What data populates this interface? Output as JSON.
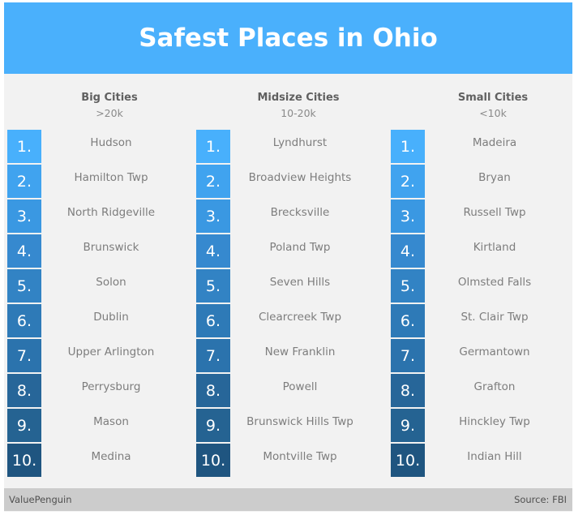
{
  "title": "Safest Places in Ohio",
  "colors": {
    "header_bg": "#4ab0fc",
    "rank_colors": [
      "#48b0fc",
      "#40a3ef",
      "#3a98e2",
      "#3689cf",
      "#3283c4",
      "#2e7ab7",
      "#2b73ad",
      "#276699",
      "#256392",
      "#1f5580"
    ]
  },
  "columns": [
    {
      "title": "Big Cities",
      "subtitle": ">20k",
      "items": [
        {
          "rank": "1.",
          "city": "Hudson"
        },
        {
          "rank": "2.",
          "city": "Hamilton Twp"
        },
        {
          "rank": "3.",
          "city": "North Ridgeville"
        },
        {
          "rank": "4.",
          "city": "Brunswick"
        },
        {
          "rank": "5.",
          "city": "Solon"
        },
        {
          "rank": "6.",
          "city": "Dublin"
        },
        {
          "rank": "7.",
          "city": "Upper Arlington"
        },
        {
          "rank": "8.",
          "city": "Perrysburg"
        },
        {
          "rank": "9.",
          "city": "Mason"
        },
        {
          "rank": "10.",
          "city": "Medina"
        }
      ]
    },
    {
      "title": "Midsize Cities",
      "subtitle": "10-20k",
      "items": [
        {
          "rank": "1.",
          "city": "Lyndhurst"
        },
        {
          "rank": "2.",
          "city": "Broadview Heights"
        },
        {
          "rank": "3.",
          "city": "Brecksville"
        },
        {
          "rank": "4.",
          "city": "Poland Twp"
        },
        {
          "rank": "5.",
          "city": "Seven Hills"
        },
        {
          "rank": "6.",
          "city": "Clearcreek Twp"
        },
        {
          "rank": "7.",
          "city": "New Franklin"
        },
        {
          "rank": "8.",
          "city": "Powell"
        },
        {
          "rank": "9.",
          "city": "Brunswick Hills Twp"
        },
        {
          "rank": "10.",
          "city": "Montville Twp"
        }
      ]
    },
    {
      "title": "Small Cities",
      "subtitle": "<10k",
      "items": [
        {
          "rank": "1.",
          "city": "Madeira"
        },
        {
          "rank": "2.",
          "city": "Bryan"
        },
        {
          "rank": "3.",
          "city": "Russell Twp"
        },
        {
          "rank": "4.",
          "city": "Kirtland"
        },
        {
          "rank": "5.",
          "city": "Olmsted Falls"
        },
        {
          "rank": "6.",
          "city": "St. Clair Twp"
        },
        {
          "rank": "7.",
          "city": "Germantown"
        },
        {
          "rank": "8.",
          "city": "Grafton"
        },
        {
          "rank": "9.",
          "city": "Hinckley Twp"
        },
        {
          "rank": "10.",
          "city": "Indian Hill"
        }
      ]
    }
  ],
  "footer": {
    "brand": "ValuePenguin",
    "source": "Source: FBI"
  }
}
